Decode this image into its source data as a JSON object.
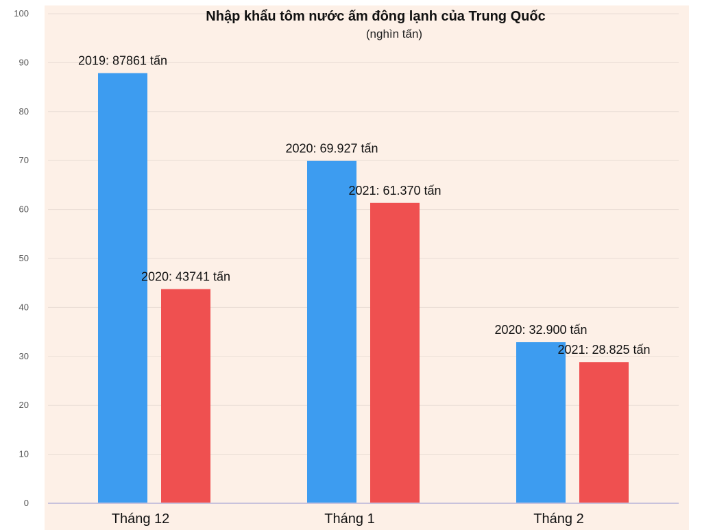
{
  "chart_data": {
    "type": "bar",
    "title": "Nhập khẩu tôm nước ấm đông lạnh của Trung Quốc",
    "subtitle": "(nghìn tấn)",
    "categories": [
      "Tháng 12",
      "Tháng 1",
      "Tháng 2"
    ],
    "ylim": [
      0,
      100
    ],
    "yticks": [
      0,
      10,
      20,
      30,
      40,
      50,
      60,
      70,
      80,
      90,
      100
    ],
    "grid": true,
    "bars": [
      [
        {
          "value": 87.861,
          "label": "2019: 87861 tấn",
          "color": "#3d9cf0"
        },
        {
          "value": 43.741,
          "label": "2020: 43741 tấn",
          "color": "#ef5050"
        }
      ],
      [
        {
          "value": 69.927,
          "label": "2020: 69.927 tấn",
          "color": "#3d9cf0"
        },
        {
          "value": 61.37,
          "label": "2021: 61.370 tấn",
          "color": "#ef5050"
        }
      ],
      [
        {
          "value": 32.9,
          "label": "2020: 32.900 tấn",
          "color": "#3d9cf0"
        },
        {
          "value": 28.825,
          "label": "2021: 28.825 tấn",
          "color": "#ef5050"
        }
      ]
    ],
    "colors": {
      "background": "#fdf0e7",
      "grid": "#e9ddd5",
      "axis": "#c8c2dc"
    }
  }
}
